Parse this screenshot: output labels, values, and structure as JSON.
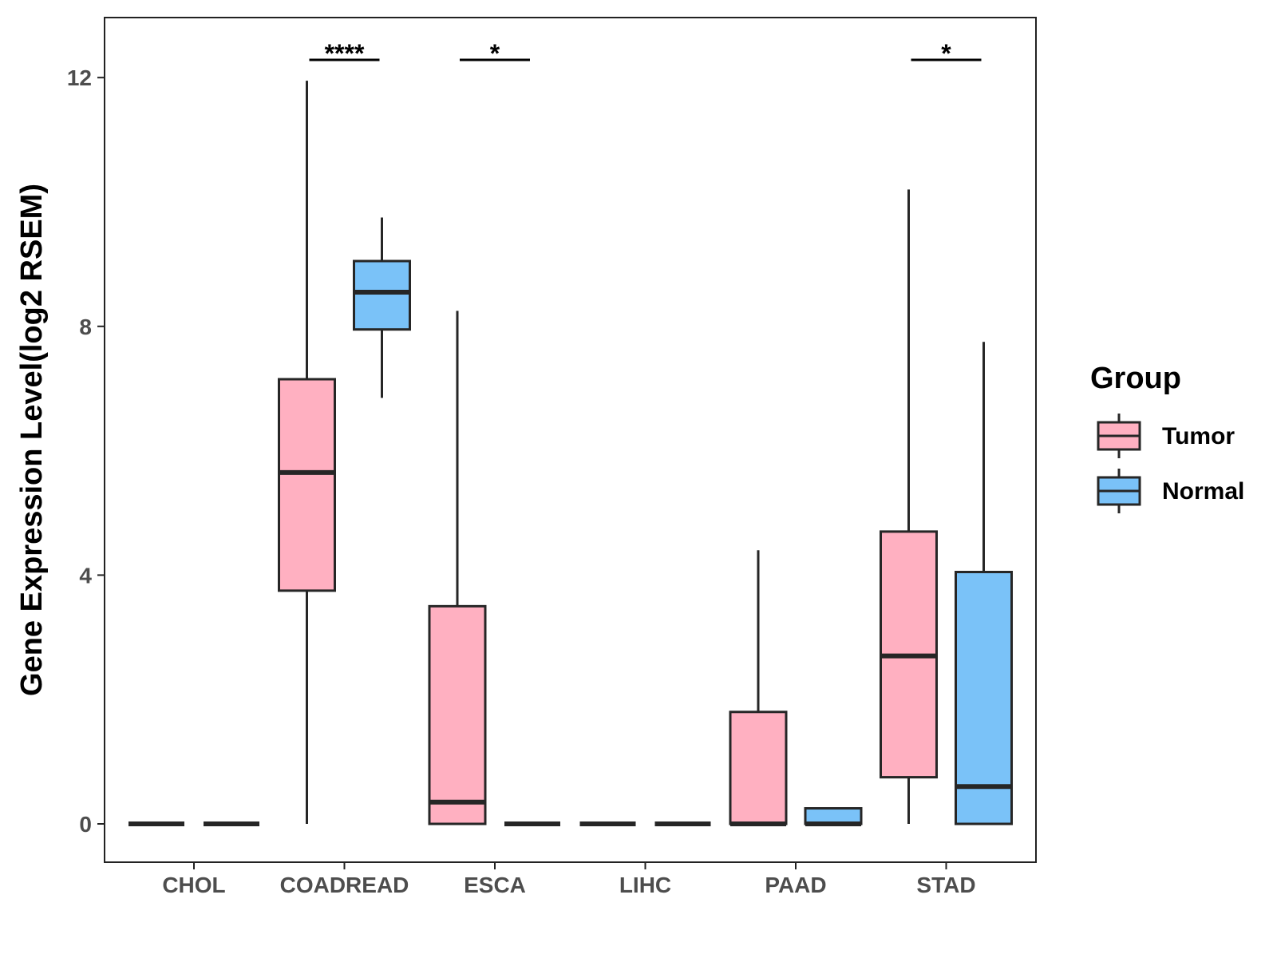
{
  "chart_data": {
    "type": "boxplot",
    "title": "",
    "xlabel": "",
    "ylabel": "Gene Expression Level(log2 RSEM)",
    "ylim": [
      -0.6,
      13.0
    ],
    "yticks": [
      0,
      4,
      8,
      12
    ],
    "categories": [
      "CHOL",
      "COADREAD",
      "ESCA",
      "LIHC",
      "PAAD",
      "STAD"
    ],
    "legend": {
      "title": "Group",
      "position": "right",
      "entries": [
        {
          "name": "Tumor",
          "color": "#FFB0C1"
        },
        {
          "name": "Normal",
          "color": "#7AC2F8"
        }
      ]
    },
    "series": [
      {
        "name": "Tumor",
        "color": "#FFB0C1",
        "boxes": [
          {
            "category": "CHOL",
            "min": 0,
            "q1": 0,
            "median": 0,
            "q3": 0,
            "max": 0
          },
          {
            "category": "COADREAD",
            "min": 0,
            "q1": 3.75,
            "median": 5.65,
            "q3": 7.15,
            "max": 11.95
          },
          {
            "category": "ESCA",
            "min": 0,
            "q1": 0,
            "median": 0.35,
            "q3": 3.5,
            "max": 8.25
          },
          {
            "category": "LIHC",
            "min": 0,
            "q1": 0,
            "median": 0,
            "q3": 0,
            "max": 0
          },
          {
            "category": "PAAD",
            "min": 0,
            "q1": 0,
            "median": 0,
            "q3": 1.8,
            "max": 4.4
          },
          {
            "category": "STAD",
            "min": 0,
            "q1": 0.75,
            "median": 2.7,
            "q3": 4.7,
            "max": 10.2
          }
        ]
      },
      {
        "name": "Normal",
        "color": "#7AC2F8",
        "boxes": [
          {
            "category": "CHOL",
            "min": 0,
            "q1": 0,
            "median": 0,
            "q3": 0,
            "max": 0
          },
          {
            "category": "COADREAD",
            "min": 6.85,
            "q1": 7.95,
            "median": 8.55,
            "q3": 9.05,
            "max": 9.75
          },
          {
            "category": "ESCA",
            "min": 0,
            "q1": 0,
            "median": 0,
            "q3": 0,
            "max": 0
          },
          {
            "category": "LIHC",
            "min": 0,
            "q1": 0,
            "median": 0,
            "q3": 0,
            "max": 0
          },
          {
            "category": "PAAD",
            "min": 0,
            "q1": 0,
            "median": 0,
            "q3": 0.25,
            "max": 0.25
          },
          {
            "category": "STAD",
            "min": 0,
            "q1": 0,
            "median": 0.6,
            "q3": 4.05,
            "max": 7.75
          }
        ]
      }
    ],
    "significance": [
      {
        "category": "COADREAD",
        "label": "****"
      },
      {
        "category": "ESCA",
        "label": "*"
      },
      {
        "category": "STAD",
        "label": "*"
      }
    ]
  }
}
